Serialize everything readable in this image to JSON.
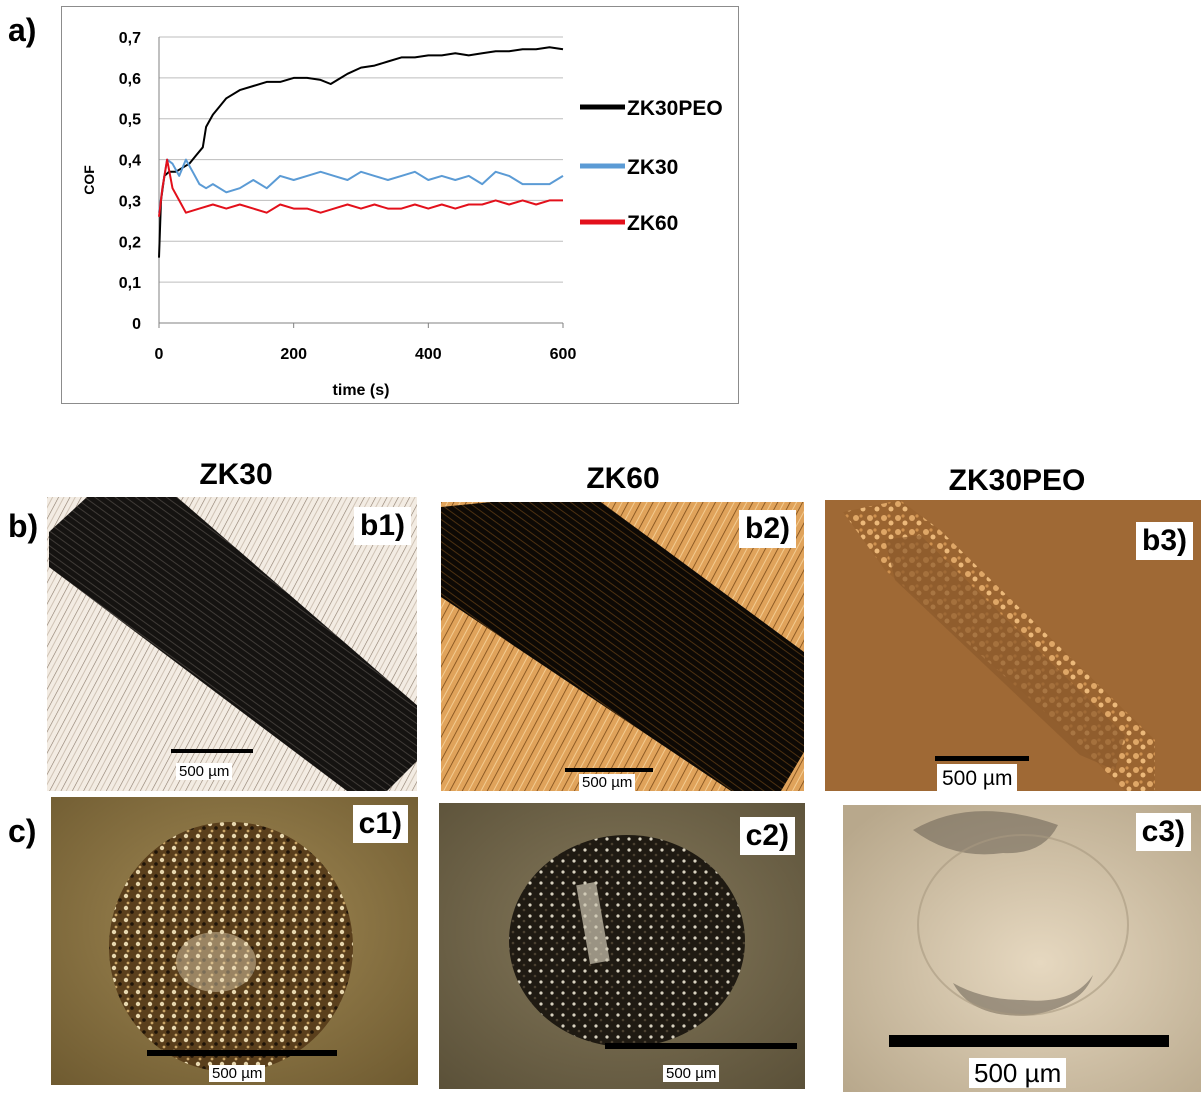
{
  "labels": {
    "a": "a)",
    "b": "b)",
    "c": "c)"
  },
  "chart_data": {
    "type": "line",
    "xlabel": "time (s)",
    "ylabel": "COF",
    "xlim": [
      0,
      600
    ],
    "ylim": [
      0,
      0.7
    ],
    "x_ticks": [
      "0",
      "200",
      "400",
      "600"
    ],
    "y_ticks": [
      "0",
      "0,1",
      "0,2",
      "0,3",
      "0,4",
      "0,5",
      "0,6",
      "0,7"
    ],
    "grid": "horizontal",
    "legend_position": "right",
    "series": [
      {
        "name": "ZK30PEO",
        "color": "#000000",
        "points": [
          [
            0,
            0.16
          ],
          [
            3,
            0.3
          ],
          [
            8,
            0.36
          ],
          [
            15,
            0.37
          ],
          [
            25,
            0.37
          ],
          [
            35,
            0.38
          ],
          [
            45,
            0.39
          ],
          [
            55,
            0.41
          ],
          [
            65,
            0.43
          ],
          [
            70,
            0.48
          ],
          [
            80,
            0.51
          ],
          [
            90,
            0.53
          ],
          [
            100,
            0.55
          ],
          [
            120,
            0.57
          ],
          [
            140,
            0.58
          ],
          [
            160,
            0.59
          ],
          [
            180,
            0.59
          ],
          [
            200,
            0.6
          ],
          [
            220,
            0.6
          ],
          [
            240,
            0.595
          ],
          [
            255,
            0.585
          ],
          [
            270,
            0.6
          ],
          [
            280,
            0.61
          ],
          [
            300,
            0.625
          ],
          [
            320,
            0.63
          ],
          [
            340,
            0.64
          ],
          [
            360,
            0.65
          ],
          [
            380,
            0.65
          ],
          [
            400,
            0.655
          ],
          [
            420,
            0.655
          ],
          [
            440,
            0.66
          ],
          [
            460,
            0.655
          ],
          [
            480,
            0.66
          ],
          [
            500,
            0.665
          ],
          [
            520,
            0.665
          ],
          [
            540,
            0.67
          ],
          [
            560,
            0.67
          ],
          [
            580,
            0.675
          ],
          [
            600,
            0.67
          ]
        ]
      },
      {
        "name": "ZK30",
        "color": "#5b9bd5",
        "points": [
          [
            0,
            0.27
          ],
          [
            5,
            0.33
          ],
          [
            12,
            0.4
          ],
          [
            20,
            0.39
          ],
          [
            30,
            0.36
          ],
          [
            40,
            0.4
          ],
          [
            50,
            0.37
          ],
          [
            60,
            0.34
          ],
          [
            70,
            0.33
          ],
          [
            80,
            0.34
          ],
          [
            100,
            0.32
          ],
          [
            120,
            0.33
          ],
          [
            140,
            0.35
          ],
          [
            160,
            0.33
          ],
          [
            180,
            0.36
          ],
          [
            200,
            0.35
          ],
          [
            220,
            0.36
          ],
          [
            240,
            0.37
          ],
          [
            260,
            0.36
          ],
          [
            280,
            0.35
          ],
          [
            300,
            0.37
          ],
          [
            320,
            0.36
          ],
          [
            340,
            0.35
          ],
          [
            360,
            0.36
          ],
          [
            380,
            0.37
          ],
          [
            400,
            0.35
          ],
          [
            420,
            0.36
          ],
          [
            440,
            0.35
          ],
          [
            460,
            0.36
          ],
          [
            480,
            0.34
          ],
          [
            500,
            0.37
          ],
          [
            520,
            0.36
          ],
          [
            540,
            0.34
          ],
          [
            560,
            0.34
          ],
          [
            580,
            0.34
          ],
          [
            600,
            0.36
          ]
        ]
      },
      {
        "name": "ZK60",
        "color": "#e3101b",
        "points": [
          [
            0,
            0.26
          ],
          [
            5,
            0.33
          ],
          [
            12,
            0.4
          ],
          [
            20,
            0.33
          ],
          [
            30,
            0.3
          ],
          [
            40,
            0.27
          ],
          [
            60,
            0.28
          ],
          [
            80,
            0.29
          ],
          [
            100,
            0.28
          ],
          [
            120,
            0.29
          ],
          [
            140,
            0.28
          ],
          [
            160,
            0.27
          ],
          [
            180,
            0.29
          ],
          [
            200,
            0.28
          ],
          [
            220,
            0.28
          ],
          [
            240,
            0.27
          ],
          [
            260,
            0.28
          ],
          [
            280,
            0.29
          ],
          [
            300,
            0.28
          ],
          [
            320,
            0.29
          ],
          [
            340,
            0.28
          ],
          [
            360,
            0.28
          ],
          [
            380,
            0.29
          ],
          [
            400,
            0.28
          ],
          [
            420,
            0.29
          ],
          [
            440,
            0.28
          ],
          [
            460,
            0.29
          ],
          [
            480,
            0.29
          ],
          [
            500,
            0.3
          ],
          [
            520,
            0.29
          ],
          [
            540,
            0.3
          ],
          [
            560,
            0.29
          ],
          [
            580,
            0.3
          ],
          [
            600,
            0.3
          ]
        ]
      }
    ]
  },
  "columns": {
    "zk30": "ZK30",
    "zk60": "ZK60",
    "zk30peo": "ZK30PEO"
  },
  "panels": {
    "b1": {
      "label": "b1)",
      "scale": "500 µm"
    },
    "b2": {
      "label": "b2)",
      "scale": "500 µm"
    },
    "b3": {
      "label": "b3)",
      "scale": "500 µm"
    },
    "c1": {
      "label": "c1)",
      "scale": "500 µm"
    },
    "c2": {
      "label": "c2)",
      "scale": "500 µm"
    },
    "c3": {
      "label": "c3)",
      "scale": "500 µm"
    }
  }
}
